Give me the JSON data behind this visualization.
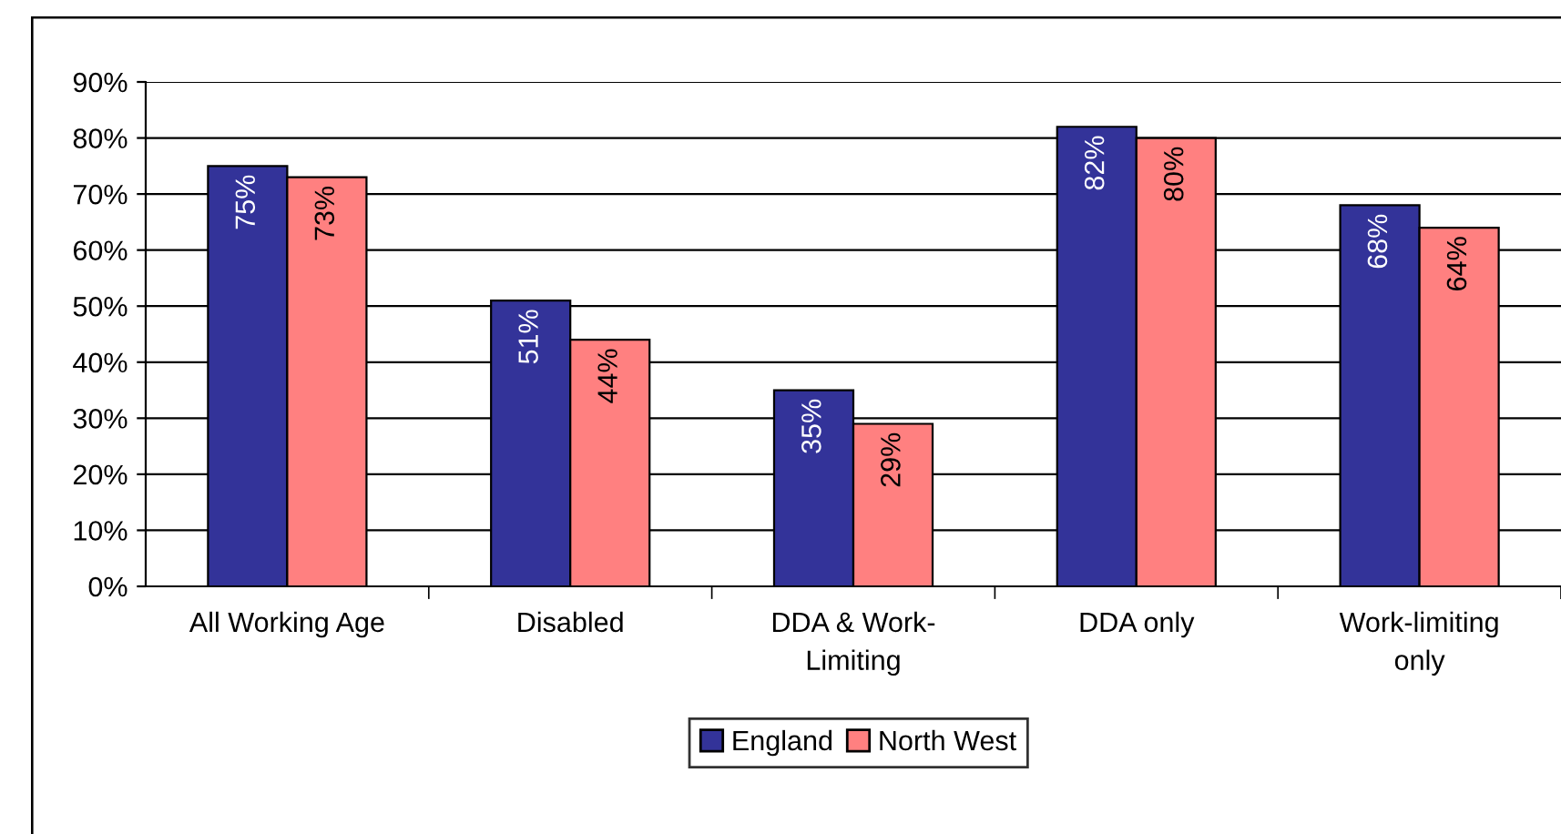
{
  "chart_data": {
    "type": "bar",
    "categories": [
      "All Working Age",
      "Disabled",
      "DDA & Work-Limiting",
      "DDA only",
      "Work-limiting only"
    ],
    "series": [
      {
        "name": "England",
        "color": "#333399",
        "values": [
          75,
          51,
          35,
          82,
          68
        ],
        "value_labels": [
          "75%",
          "51%",
          "35%",
          "82%",
          "68%"
        ]
      },
      {
        "name": "North West",
        "color": "#ff8080",
        "values": [
          73,
          44,
          29,
          80,
          64
        ],
        "value_labels": [
          "73%",
          "44%",
          "29%",
          "80%",
          "64%"
        ]
      }
    ],
    "ylim": [
      0,
      90
    ],
    "yticks": [
      {
        "value": 0,
        "label": "0%"
      },
      {
        "value": 10,
        "label": "10%"
      },
      {
        "value": 20,
        "label": "20%"
      },
      {
        "value": 30,
        "label": "30%"
      },
      {
        "value": 40,
        "label": "40%"
      },
      {
        "value": 50,
        "label": "50%"
      },
      {
        "value": 60,
        "label": "60%"
      },
      {
        "value": 70,
        "label": "70%"
      },
      {
        "value": 80,
        "label": "80%"
      },
      {
        "value": 90,
        "label": "90%"
      }
    ],
    "grid": "y",
    "legend": "bottom"
  }
}
